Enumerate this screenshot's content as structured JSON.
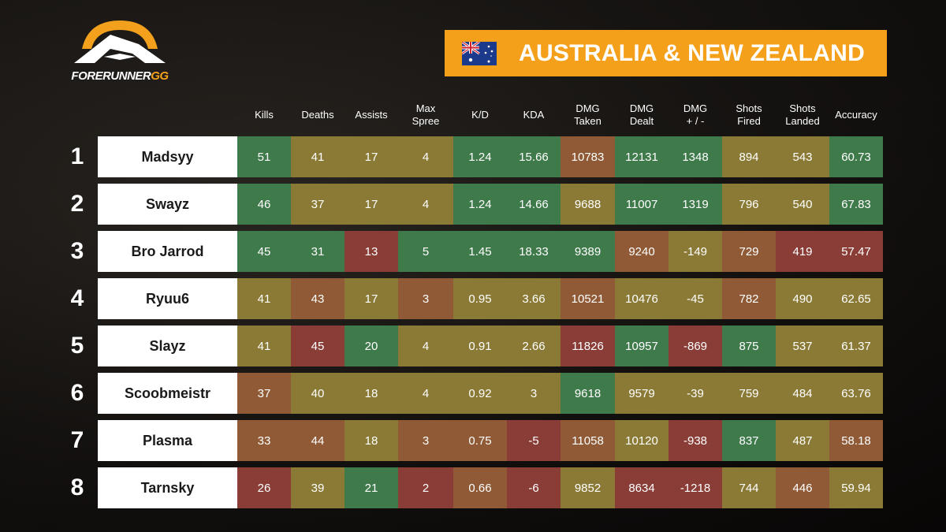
{
  "brand": {
    "name_main": "FORERUNNER",
    "name_accent": "GG"
  },
  "banner": {
    "title": "AUSTRALIA & NEW ZEALAND",
    "flag": "australia-flag-icon"
  },
  "columns": [
    {
      "line1": "Kills",
      "line2": ""
    },
    {
      "line1": "Deaths",
      "line2": ""
    },
    {
      "line1": "Assists",
      "line2": ""
    },
    {
      "line1": "Max",
      "line2": "Spree"
    },
    {
      "line1": "K/D",
      "line2": ""
    },
    {
      "line1": "KDA",
      "line2": ""
    },
    {
      "line1": "DMG",
      "line2": "Taken"
    },
    {
      "line1": "DMG",
      "line2": "Dealt"
    },
    {
      "line1": "DMG",
      "line2": "+ / -"
    },
    {
      "line1": "Shots",
      "line2": "Fired"
    },
    {
      "line1": "Shots",
      "line2": "Landed"
    },
    {
      "line1": "Accuracy",
      "line2": ""
    }
  ],
  "players": [
    {
      "rank": "1",
      "name": "Madsyy",
      "stats": [
        "51",
        "41",
        "17",
        "4",
        "1.24",
        "15.66",
        "10783",
        "12131",
        "1348",
        "894",
        "543",
        "60.73"
      ],
      "colors": [
        "g",
        "y",
        "y",
        "y",
        "g",
        "g",
        "o",
        "g",
        "g",
        "y",
        "y",
        "g"
      ]
    },
    {
      "rank": "2",
      "name": "Swayz",
      "stats": [
        "46",
        "37",
        "17",
        "4",
        "1.24",
        "14.66",
        "9688",
        "11007",
        "1319",
        "796",
        "540",
        "67.83"
      ],
      "colors": [
        "g",
        "y",
        "y",
        "y",
        "g",
        "g",
        "y",
        "g",
        "g",
        "y",
        "y",
        "g"
      ]
    },
    {
      "rank": "3",
      "name": "Bro Jarrod",
      "stats": [
        "45",
        "31",
        "13",
        "5",
        "1.45",
        "18.33",
        "9389",
        "9240",
        "-149",
        "729",
        "419",
        "57.47"
      ],
      "colors": [
        "g",
        "g",
        "r",
        "g",
        "g",
        "g",
        "g",
        "o",
        "y",
        "o",
        "r",
        "r"
      ]
    },
    {
      "rank": "4",
      "name": "Ryuu6",
      "stats": [
        "41",
        "43",
        "17",
        "3",
        "0.95",
        "3.66",
        "10521",
        "10476",
        "-45",
        "782",
        "490",
        "62.65"
      ],
      "colors": [
        "y",
        "o",
        "y",
        "o",
        "y",
        "y",
        "o",
        "y",
        "y",
        "o",
        "y",
        "y"
      ]
    },
    {
      "rank": "5",
      "name": "Slayz",
      "stats": [
        "41",
        "45",
        "20",
        "4",
        "0.91",
        "2.66",
        "11826",
        "10957",
        "-869",
        "875",
        "537",
        "61.37"
      ],
      "colors": [
        "y",
        "r",
        "g",
        "y",
        "y",
        "y",
        "r",
        "g",
        "r",
        "g",
        "y",
        "y"
      ]
    },
    {
      "rank": "6",
      "name": "Scoobmeistr",
      "stats": [
        "37",
        "40",
        "18",
        "4",
        "0.92",
        "3",
        "9618",
        "9579",
        "-39",
        "759",
        "484",
        "63.76"
      ],
      "colors": [
        "o",
        "y",
        "y",
        "y",
        "y",
        "y",
        "g",
        "y",
        "y",
        "y",
        "y",
        "y"
      ]
    },
    {
      "rank": "7",
      "name": "Plasma",
      "stats": [
        "33",
        "44",
        "18",
        "3",
        "0.75",
        "-5",
        "11058",
        "10120",
        "-938",
        "837",
        "487",
        "58.18"
      ],
      "colors": [
        "o",
        "o",
        "y",
        "o",
        "o",
        "r",
        "o",
        "y",
        "r",
        "g",
        "y",
        "o"
      ]
    },
    {
      "rank": "8",
      "name": "Tarnsky",
      "stats": [
        "26",
        "39",
        "21",
        "2",
        "0.66",
        "-6",
        "9852",
        "8634",
        "-1218",
        "744",
        "446",
        "59.94"
      ],
      "colors": [
        "r",
        "y",
        "g",
        "r",
        "o",
        "r",
        "y",
        "r",
        "r",
        "y",
        "o",
        "y"
      ]
    }
  ],
  "palette": {
    "g": "#3f7a4b",
    "y": "#8b7a35",
    "o": "#8f5a35",
    "r": "#8a3d37"
  }
}
